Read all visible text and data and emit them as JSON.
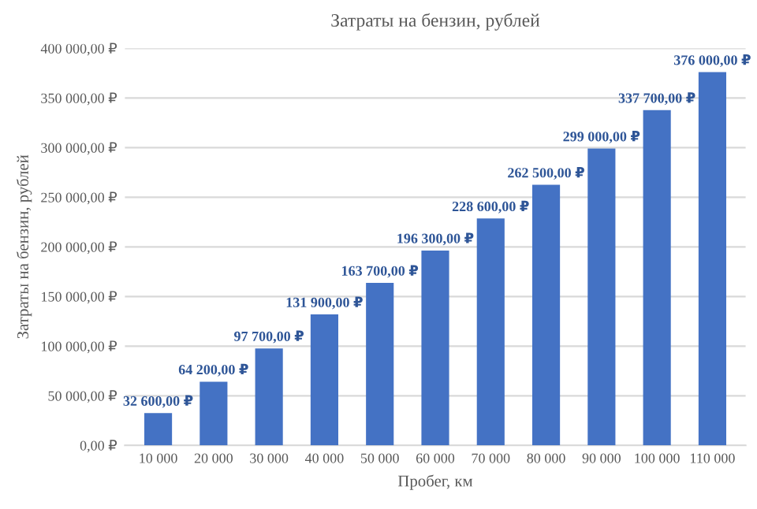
{
  "chart_data": {
    "type": "bar",
    "title": "Затраты на бензин, рублей",
    "xlabel": "Пробег, км",
    "ylabel": "Затраты на бензин, рублей",
    "categories": [
      "10 000",
      "20 000",
      "30 000",
      "40 000",
      "50 000",
      "60 000",
      "70 000",
      "80 000",
      "90 000",
      "100 000",
      "110 000"
    ],
    "values": [
      32600,
      64200,
      97700,
      131900,
      163700,
      196300,
      228600,
      262500,
      299000,
      337700,
      376000
    ],
    "value_labels": [
      "32 600,00 ₽",
      "64 200,00 ₽",
      "97 700,00 ₽",
      "131 900,00 ₽",
      "163 700,00 ₽",
      "196 300,00 ₽",
      "228 600,00 ₽",
      "262 500,00 ₽",
      "299 000,00 ₽",
      "337 700,00 ₽",
      "376 000,00 ₽"
    ],
    "color": "#4472c4",
    "ylim": [
      0,
      400000
    ],
    "yticks": [
      {
        "value": 0,
        "label": "0,00 ₽"
      },
      {
        "value": 50000,
        "label": "50 000,00 ₽"
      },
      {
        "value": 100000,
        "label": "100 000,00 ₽"
      },
      {
        "value": 150000,
        "label": "150 000,00 ₽"
      },
      {
        "value": 200000,
        "label": "200 000,00 ₽"
      },
      {
        "value": 250000,
        "label": "250 000,00 ₽"
      },
      {
        "value": 300000,
        "label": "300 000,00 ₽"
      },
      {
        "value": 350000,
        "label": "350 000,00 ₽"
      },
      {
        "value": 400000,
        "label": "400 000,00 ₽"
      }
    ],
    "grid": "y"
  }
}
